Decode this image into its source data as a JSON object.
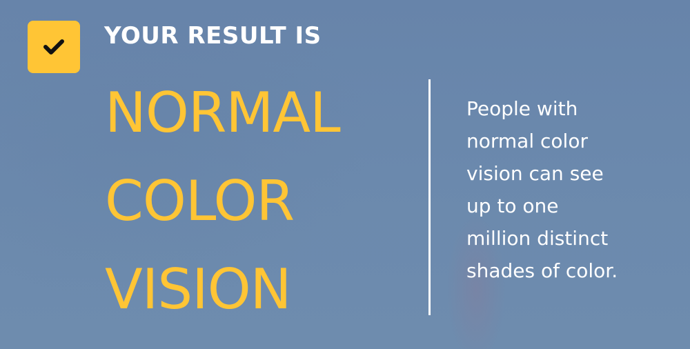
{
  "result": {
    "eyebrow": "YOUR RESULT IS",
    "headline_lines": [
      "NORMAL",
      "COLOR",
      "VISION"
    ],
    "description": "People with\nnormal color\nvision can see\nup to one\nmillion distinct\nshades of color.",
    "icon": "check-icon"
  },
  "colors": {
    "accent": "#ffc535",
    "background": "#6a87ab",
    "text": "#ffffff"
  }
}
